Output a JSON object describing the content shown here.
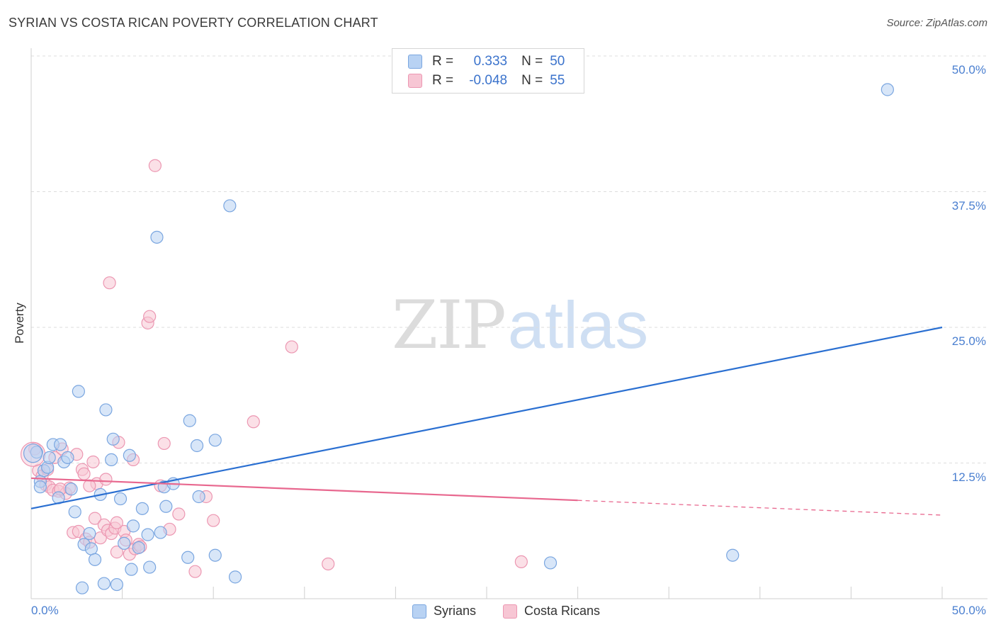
{
  "header": {
    "title": "SYRIAN VS COSTA RICAN POVERTY CORRELATION CHART",
    "source": "Source: ZipAtlas.com"
  },
  "watermark": {
    "zip": "ZIP",
    "atlas": "atlas"
  },
  "legend_top": {
    "rows": [
      {
        "series": "Syrians",
        "r_label": "R =",
        "r_value": "0.333",
        "n_label": "N =",
        "n_value": "50"
      },
      {
        "series": "Costa Ricans",
        "r_label": "R =",
        "r_value": "-0.048",
        "n_label": "N =",
        "n_value": "55"
      }
    ]
  },
  "colors": {
    "syrians_fill": "#b8d2f3",
    "syrians_stroke": "#7aa6e0",
    "syrians_line": "#2a6fd1",
    "costa_fill": "#f7c6d4",
    "costa_stroke": "#ec97b2",
    "costa_line": "#e8688f",
    "tick_label": "#4a7fd0",
    "grid": "#dddddd"
  },
  "chart_data": {
    "type": "scatter",
    "title": "SYRIAN VS COSTA RICAN POVERTY CORRELATION CHART",
    "xlabel": "",
    "ylabel": "Poverty",
    "xlim": [
      0,
      50
    ],
    "ylim": [
      0,
      50
    ],
    "x_tick_labels": [
      "0.0%",
      "50.0%"
    ],
    "y_ticks": [
      {
        "value": 12.5,
        "label": "12.5%"
      },
      {
        "value": 25.0,
        "label": "25.0%"
      },
      {
        "value": 37.5,
        "label": "37.5%"
      },
      {
        "value": 50.0,
        "label": "50.0%"
      }
    ],
    "grid": true,
    "legend_position": "top-center",
    "series": [
      {
        "name": "Syrians",
        "r": 0.333,
        "n": 50,
        "trend": {
          "x0": 0,
          "y0": 8.3,
          "x1": 50,
          "y1": 25.0,
          "dashed_from": null
        },
        "points": [
          [
            0.3,
            13.5
          ],
          [
            0.5,
            10.8
          ],
          [
            0.7,
            11.8
          ],
          [
            0.9,
            12.1
          ],
          [
            0.5,
            10.3
          ],
          [
            1.0,
            13.0
          ],
          [
            1.2,
            14.2
          ],
          [
            1.6,
            14.2
          ],
          [
            1.8,
            12.6
          ],
          [
            2.0,
            13.0
          ],
          [
            2.2,
            10.1
          ],
          [
            1.5,
            9.3
          ],
          [
            2.4,
            8.0
          ],
          [
            2.6,
            19.1
          ],
          [
            2.8,
            1.0
          ],
          [
            2.9,
            5.0
          ],
          [
            3.2,
            6.0
          ],
          [
            3.3,
            4.6
          ],
          [
            3.5,
            3.6
          ],
          [
            3.8,
            9.6
          ],
          [
            4.0,
            1.4
          ],
          [
            4.1,
            17.4
          ],
          [
            4.4,
            12.8
          ],
          [
            4.5,
            14.7
          ],
          [
            4.7,
            1.3
          ],
          [
            4.9,
            9.2
          ],
          [
            5.1,
            5.1
          ],
          [
            5.4,
            13.2
          ],
          [
            5.5,
            2.7
          ],
          [
            5.6,
            6.7
          ],
          [
            5.9,
            4.7
          ],
          [
            6.1,
            8.3
          ],
          [
            6.4,
            5.9
          ],
          [
            6.5,
            2.9
          ],
          [
            6.9,
            33.3
          ],
          [
            7.1,
            6.1
          ],
          [
            7.3,
            10.3
          ],
          [
            7.4,
            8.5
          ],
          [
            7.8,
            10.6
          ],
          [
            8.6,
            3.8
          ],
          [
            8.7,
            16.4
          ],
          [
            9.1,
            14.1
          ],
          [
            9.2,
            9.4
          ],
          [
            10.1,
            14.6
          ],
          [
            10.1,
            4.0
          ],
          [
            10.9,
            36.2
          ],
          [
            11.2,
            2.0
          ],
          [
            28.5,
            3.3
          ],
          [
            38.5,
            4.0
          ],
          [
            47.0,
            46.9
          ]
        ]
      },
      {
        "name": "Costa Ricans",
        "r": -0.048,
        "n": 55,
        "trend": {
          "x0": 0,
          "y0": 11.1,
          "x1": 50,
          "y1": 7.7,
          "dashed_from": 30.0
        },
        "points": [
          [
            0.2,
            13.8
          ],
          [
            0.4,
            11.8
          ],
          [
            0.6,
            11.3
          ],
          [
            0.8,
            10.5
          ],
          [
            1.0,
            10.3
          ],
          [
            1.2,
            10.0
          ],
          [
            1.3,
            13.0
          ],
          [
            1.5,
            9.9
          ],
          [
            1.7,
            13.8
          ],
          [
            1.9,
            9.7
          ],
          [
            2.1,
            10.2
          ],
          [
            2.3,
            6.1
          ],
          [
            2.5,
            13.3
          ],
          [
            2.6,
            6.2
          ],
          [
            2.8,
            11.9
          ],
          [
            2.9,
            11.5
          ],
          [
            3.0,
            5.5
          ],
          [
            3.2,
            5.2
          ],
          [
            3.4,
            12.6
          ],
          [
            3.5,
            7.4
          ],
          [
            3.6,
            10.6
          ],
          [
            3.8,
            5.6
          ],
          [
            4.0,
            6.8
          ],
          [
            4.1,
            11.0
          ],
          [
            4.2,
            6.3
          ],
          [
            4.3,
            29.1
          ],
          [
            4.4,
            6.0
          ],
          [
            4.6,
            6.5
          ],
          [
            4.7,
            4.3
          ],
          [
            4.8,
            14.4
          ],
          [
            5.1,
            6.2
          ],
          [
            5.2,
            5.4
          ],
          [
            5.4,
            4.1
          ],
          [
            5.6,
            12.8
          ],
          [
            5.7,
            4.6
          ],
          [
            5.9,
            5.0
          ],
          [
            6.0,
            4.8
          ],
          [
            6.4,
            25.4
          ],
          [
            6.5,
            26.0
          ],
          [
            6.8,
            39.9
          ],
          [
            7.1,
            10.4
          ],
          [
            7.3,
            14.3
          ],
          [
            7.6,
            6.4
          ],
          [
            8.1,
            7.8
          ],
          [
            9.0,
            2.5
          ],
          [
            9.6,
            9.4
          ],
          [
            10.0,
            7.2
          ],
          [
            12.2,
            16.3
          ],
          [
            14.3,
            23.2
          ],
          [
            16.3,
            3.2
          ],
          [
            26.9,
            3.4
          ],
          [
            4.7,
            7.0
          ],
          [
            3.2,
            10.4
          ],
          [
            1.6,
            10.1
          ],
          [
            0.9,
            11.9
          ]
        ]
      }
    ]
  },
  "bottom_legend": {
    "items": [
      "Syrians",
      "Costa Ricans"
    ]
  }
}
